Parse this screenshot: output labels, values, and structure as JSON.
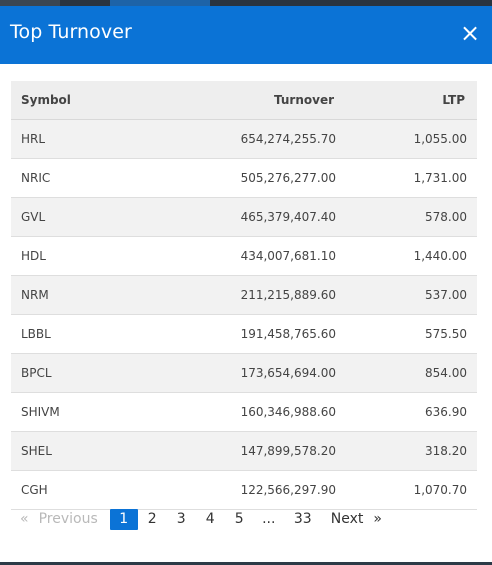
{
  "modal": {
    "title": "Top Turnover",
    "close_icon": "×"
  },
  "table": {
    "headers": {
      "symbol": "Symbol",
      "turnover": "Turnover",
      "ltp": "LTP"
    },
    "rows": [
      {
        "symbol": "HRL",
        "turnover": "654,274,255.70",
        "ltp": "1,055.00"
      },
      {
        "symbol": "NRIC",
        "turnover": "505,276,277.00",
        "ltp": "1,731.00"
      },
      {
        "symbol": "GVL",
        "turnover": "465,379,407.40",
        "ltp": "578.00"
      },
      {
        "symbol": "HDL",
        "turnover": "434,007,681.10",
        "ltp": "1,440.00"
      },
      {
        "symbol": "NRM",
        "turnover": "211,215,889.60",
        "ltp": "537.00"
      },
      {
        "symbol": "LBBL",
        "turnover": "191,458,765.60",
        "ltp": "575.50"
      },
      {
        "symbol": "BPCL",
        "turnover": "173,654,694.00",
        "ltp": "854.00"
      },
      {
        "symbol": "SHIVM",
        "turnover": "160,346,988.60",
        "ltp": "636.90"
      },
      {
        "symbol": "SHEL",
        "turnover": "147,899,578.20",
        "ltp": "318.20"
      },
      {
        "symbol": "CGH",
        "turnover": "122,566,297.90",
        "ltp": "1,070.70"
      }
    ]
  },
  "pager": {
    "prev_arrow": "«",
    "prev_label": "Previous",
    "pages": [
      "1",
      "2",
      "3",
      "4",
      "5"
    ],
    "ellipsis": "...",
    "last_page": "33",
    "next_label": "Next",
    "next_arrow": "»",
    "current_page": "1"
  },
  "colors": {
    "header_bg": "#0b73d6",
    "active_page_bg": "#0b73d6",
    "backdrop": "#2c3a47"
  }
}
